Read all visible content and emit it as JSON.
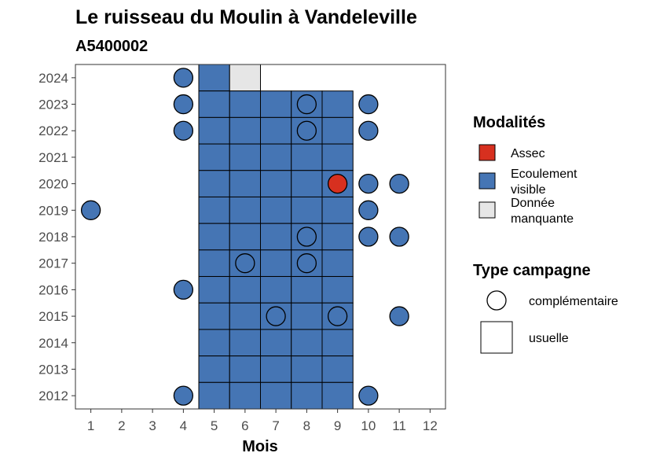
{
  "chart_data": {
    "type": "heatmap",
    "title": "Le ruisseau du Moulin à Vandeleville",
    "subtitle": "A5400002",
    "xlabel": "Mois",
    "ylabel": "",
    "x_ticks": [
      "1",
      "2",
      "3",
      "4",
      "5",
      "6",
      "7",
      "8",
      "9",
      "10",
      "11",
      "12"
    ],
    "y_ticks": [
      "2012",
      "2013",
      "2014",
      "2015",
      "2016",
      "2017",
      "2018",
      "2019",
      "2020",
      "2021",
      "2022",
      "2023",
      "2024"
    ],
    "xlim": [
      0.5,
      12.5
    ],
    "ylim": [
      2011.5,
      2024.5
    ],
    "legend_placement": "right",
    "modalites": {
      "title": "Modalités",
      "items": [
        {
          "key": "assec",
          "label_lines": [
            "Assec"
          ],
          "color": "#d7301f"
        },
        {
          "key": "ecoulement",
          "label_lines": [
            "Ecoulement",
            "visible"
          ],
          "color": "#4575b4"
        },
        {
          "key": "manquante",
          "label_lines": [
            "Donnée",
            "manquante"
          ],
          "color": "#e6e6e6"
        }
      ]
    },
    "type_campagne": {
      "title": "Type campagne",
      "items": [
        {
          "key": "complementaire",
          "label": "complémentaire",
          "shape": "circle"
        },
        {
          "key": "usuelle",
          "label": "usuelle",
          "shape": "square"
        }
      ]
    },
    "usuelle": [
      {
        "year": 2024,
        "month": 5,
        "m": "ecoulement"
      },
      {
        "year": 2024,
        "month": 6,
        "m": "manquante"
      },
      {
        "year": 2023,
        "months": [
          5,
          6,
          7,
          8,
          9
        ],
        "m": "ecoulement"
      },
      {
        "year": 2022,
        "months": [
          5,
          6,
          7,
          8,
          9
        ],
        "m": "ecoulement"
      },
      {
        "year": 2021,
        "months": [
          5,
          6,
          7,
          8,
          9
        ],
        "m": "ecoulement"
      },
      {
        "year": 2020,
        "months": [
          5,
          6,
          7,
          8,
          9
        ],
        "m": "ecoulement"
      },
      {
        "year": 2019,
        "months": [
          5,
          6,
          7,
          8,
          9
        ],
        "m": "ecoulement"
      },
      {
        "year": 2018,
        "months": [
          5,
          6,
          7,
          8,
          9
        ],
        "m": "ecoulement"
      },
      {
        "year": 2017,
        "months": [
          5,
          6,
          7,
          8,
          9
        ],
        "m": "ecoulement"
      },
      {
        "year": 2016,
        "months": [
          5,
          6,
          7,
          8,
          9
        ],
        "m": "ecoulement"
      },
      {
        "year": 2015,
        "months": [
          5,
          6,
          7,
          8,
          9
        ],
        "m": "ecoulement"
      },
      {
        "year": 2014,
        "months": [
          5,
          6,
          7,
          8,
          9
        ],
        "m": "ecoulement"
      },
      {
        "year": 2013,
        "months": [
          5,
          6,
          7,
          8,
          9
        ],
        "m": "ecoulement"
      },
      {
        "year": 2012,
        "months": [
          5,
          6,
          7,
          8,
          9
        ],
        "m": "ecoulement"
      }
    ],
    "complementaire": [
      {
        "year": 2024,
        "month": 4,
        "m": "ecoulement"
      },
      {
        "year": 2023,
        "month": 4,
        "m": "ecoulement"
      },
      {
        "year": 2023,
        "month": 8,
        "m": "ecoulement"
      },
      {
        "year": 2023,
        "month": 10,
        "m": "ecoulement"
      },
      {
        "year": 2022,
        "month": 4,
        "m": "ecoulement"
      },
      {
        "year": 2022,
        "month": 8,
        "m": "ecoulement"
      },
      {
        "year": 2022,
        "month": 10,
        "m": "ecoulement"
      },
      {
        "year": 2020,
        "month": 9,
        "m": "assec"
      },
      {
        "year": 2020,
        "month": 10,
        "m": "ecoulement"
      },
      {
        "year": 2020,
        "month": 11,
        "m": "ecoulement"
      },
      {
        "year": 2019,
        "month": 1,
        "m": "ecoulement"
      },
      {
        "year": 2019,
        "month": 10,
        "m": "ecoulement"
      },
      {
        "year": 2018,
        "month": 8,
        "m": "ecoulement"
      },
      {
        "year": 2018,
        "month": 10,
        "m": "ecoulement"
      },
      {
        "year": 2018,
        "month": 11,
        "m": "ecoulement"
      },
      {
        "year": 2017,
        "month": 6,
        "m": "ecoulement"
      },
      {
        "year": 2017,
        "month": 8,
        "m": "ecoulement"
      },
      {
        "year": 2016,
        "month": 4,
        "m": "ecoulement"
      },
      {
        "year": 2015,
        "month": 7,
        "m": "ecoulement"
      },
      {
        "year": 2015,
        "month": 9,
        "m": "ecoulement"
      },
      {
        "year": 2015,
        "month": 11,
        "m": "ecoulement"
      },
      {
        "year": 2012,
        "month": 4,
        "m": "ecoulement"
      },
      {
        "year": 2012,
        "month": 10,
        "m": "ecoulement"
      }
    ]
  }
}
